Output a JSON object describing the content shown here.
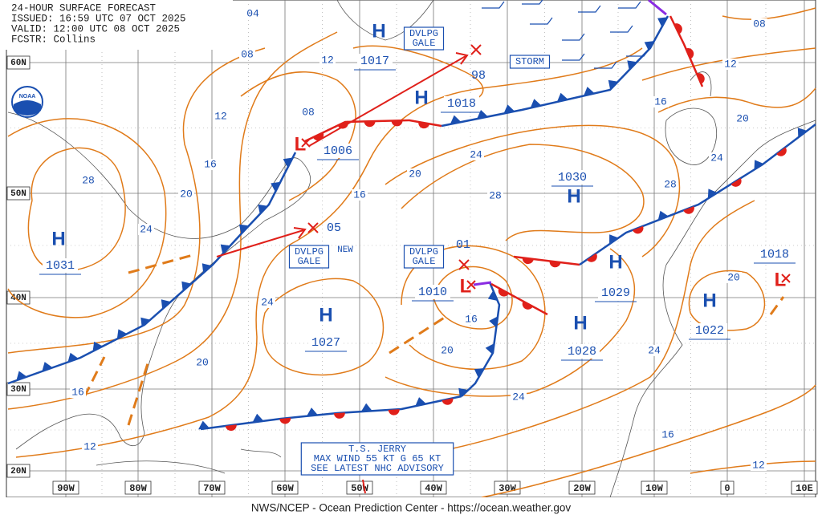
{
  "header": {
    "lines": [
      "24-HOUR SURFACE FORECAST",
      "ISSUED: 16:59 UTC 07 OCT 2025",
      "VALID:  12:00 UTC 08 OCT 2025",
      "FCSTR:  Collins"
    ]
  },
  "logo": "NOAA",
  "footer": "NWS/NCEP - Ocean Prediction Center - https://ocean.weather.gov",
  "lat_labels": [
    "60N",
    "50N",
    "40N",
    "30N",
    "20N"
  ],
  "lon_labels": [
    "90W",
    "80W",
    "70W",
    "60W",
    "50W",
    "40W",
    "30W",
    "20W",
    "10W",
    "0",
    "10E"
  ],
  "centers": [
    {
      "symbol": "H",
      "pressure": "1017"
    },
    {
      "symbol": "H",
      "pressure": "1018"
    },
    {
      "symbol": "L",
      "pressure": "1006"
    },
    {
      "symbol": "H",
      "pressure": "1030"
    },
    {
      "symbol": "H",
      "pressure": "1031"
    },
    {
      "symbol": "L",
      "pressure": "1010"
    },
    {
      "symbol": "H",
      "pressure": "1029"
    },
    {
      "symbol": "H",
      "pressure": "1027"
    },
    {
      "symbol": "H",
      "pressure": "1028"
    },
    {
      "symbol": "H",
      "pressure": "1022"
    },
    {
      "symbol": "L",
      "pressure": "1018"
    }
  ],
  "developing_lows": [
    {
      "pressure": "98"
    },
    {
      "pressure": "05"
    },
    {
      "pressure": "01"
    }
  ],
  "isobar_labels": [
    "04",
    "08",
    "12",
    "12",
    "08",
    "16",
    "20",
    "28",
    "24",
    "16",
    "20",
    "24",
    "28",
    "24",
    "20",
    "16",
    "12",
    "16",
    "20",
    "24",
    "24",
    "16",
    "12",
    "20",
    "28",
    "24",
    "20",
    "16",
    "12",
    "08"
  ],
  "notes": [
    {
      "lines": [
        "DVLPG",
        "GALE"
      ]
    },
    {
      "lines": [
        "STORM"
      ]
    },
    {
      "lines": [
        "DVLPG",
        "GALE"
      ]
    },
    {
      "lines": [
        "DVLPG",
        "GALE"
      ]
    },
    {
      "lines": [
        "T.S. JERRY",
        "MAX WIND 55 KT G 65 KT",
        "SEE LATEST NHC ADVISORY"
      ]
    }
  ],
  "new_label": "NEW"
}
